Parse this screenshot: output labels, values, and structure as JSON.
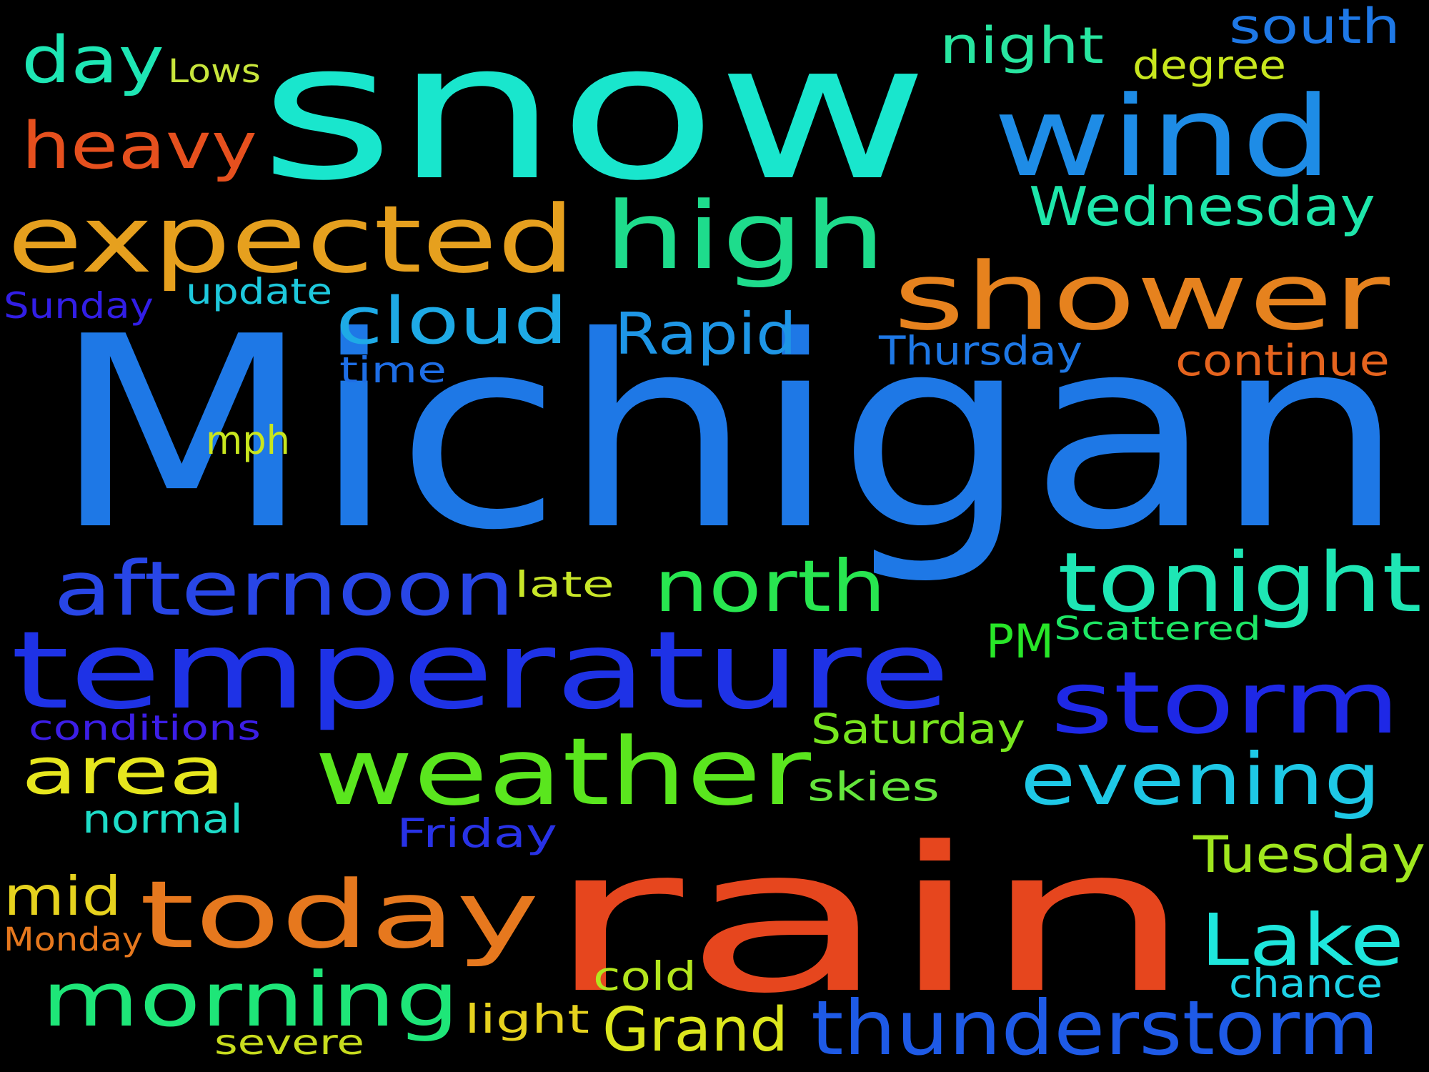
{
  "word_cloud": {
    "words": [
      {
        "text": "Michigan",
        "color": "#1e78e6"
      },
      {
        "text": "rain",
        "color": "#e6461e"
      },
      {
        "text": "snow",
        "color": "#19e6cd"
      },
      {
        "text": "temperature",
        "color": "#1e32e6"
      },
      {
        "text": "wind",
        "color": "#1e8ce6"
      },
      {
        "text": "shower",
        "color": "#e6821e"
      },
      {
        "text": "expected",
        "color": "#e6a01e"
      },
      {
        "text": "high",
        "color": "#1edc8c"
      },
      {
        "text": "today",
        "color": "#e6781e"
      },
      {
        "text": "weather",
        "color": "#5ae61e"
      },
      {
        "text": "storm",
        "color": "#1e28e6"
      },
      {
        "text": "tonight",
        "color": "#1ee6b4"
      },
      {
        "text": "afternoon",
        "color": "#2846e6"
      },
      {
        "text": "thunderstorm",
        "color": "#1e5ae6"
      },
      {
        "text": "morning",
        "color": "#1ee678"
      },
      {
        "text": "north",
        "color": "#28e650"
      },
      {
        "text": "evening",
        "color": "#1ec8e6"
      },
      {
        "text": "Lake",
        "color": "#1ee6dc"
      },
      {
        "text": "heavy",
        "color": "#e6501e"
      },
      {
        "text": "day",
        "color": "#1ee6b4"
      },
      {
        "text": "cloud",
        "color": "#1eaae6"
      },
      {
        "text": "area",
        "color": "#e6e61e"
      },
      {
        "text": "Grand",
        "color": "#dce61e"
      },
      {
        "text": "Rapid",
        "color": "#1e96e6"
      },
      {
        "text": "Wednesday",
        "color": "#1ee6aa"
      },
      {
        "text": "mid",
        "color": "#e6d21e"
      },
      {
        "text": "Tuesday",
        "color": "#a0e61e"
      },
      {
        "text": "night",
        "color": "#28e6a0"
      },
      {
        "text": "south",
        "color": "#1e78e6"
      },
      {
        "text": "continue",
        "color": "#e6641e"
      },
      {
        "text": "Saturday",
        "color": "#78e61e"
      },
      {
        "text": "PM",
        "color": "#28e628"
      },
      {
        "text": "Thursday",
        "color": "#1e78e6"
      },
      {
        "text": "chance",
        "color": "#1ed2e6"
      },
      {
        "text": "cold",
        "color": "#b4e61e"
      },
      {
        "text": "degree",
        "color": "#c8e61e"
      },
      {
        "text": "normal",
        "color": "#1edcc8"
      },
      {
        "text": "Friday",
        "color": "#2832e6"
      },
      {
        "text": "skies",
        "color": "#64e63c"
      },
      {
        "text": "light",
        "color": "#e6d21e"
      },
      {
        "text": "Sunday",
        "color": "#321ee6"
      },
      {
        "text": "update",
        "color": "#1ec8dc"
      },
      {
        "text": "mph",
        "color": "#c8e61e"
      },
      {
        "text": "Scattered",
        "color": "#1ee664"
      },
      {
        "text": "conditions",
        "color": "#3c1ee6"
      },
      {
        "text": "time",
        "color": "#1e6ee6"
      },
      {
        "text": "late",
        "color": "#c8e628"
      },
      {
        "text": "severe",
        "color": "#c8dc1e"
      },
      {
        "text": "Monday",
        "color": "#e6781e"
      },
      {
        "text": "Lows",
        "color": "#c8e63c"
      }
    ]
  }
}
